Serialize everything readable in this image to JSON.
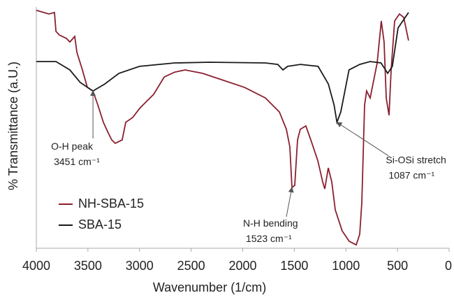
{
  "chart_data": {
    "type": "line",
    "x_label": "Wavenumber (1/cm)",
    "y_label": "% Transmittance (a.U.)",
    "xlim": [
      4000,
      0
    ],
    "xticks": [
      4000,
      3500,
      3000,
      2500,
      2000,
      1500,
      1000,
      500,
      0
    ],
    "ylim": [
      0,
      100
    ],
    "legend": "lower left",
    "series": [
      {
        "name": "NH-SBA-15",
        "color": "#8b1f2f",
        "x": [
          4000,
          3878,
          3824,
          3810,
          3777,
          3709,
          3675,
          3628,
          3607,
          3553,
          3506,
          3452,
          3404,
          3350,
          3303,
          3269,
          3235,
          3168,
          3134,
          3066,
          2998,
          2931,
          2863,
          2761,
          2660,
          2558,
          2389,
          2186,
          1983,
          1780,
          1645,
          1577,
          1543,
          1523,
          1496,
          1469,
          1442,
          1388,
          1340,
          1272,
          1225,
          1205,
          1171,
          1137,
          1103,
          1036,
          968,
          900,
          866,
          846,
          819,
          799,
          765,
          697,
          657,
          630,
          609,
          582,
          562,
          528,
          481,
          440,
          393
        ],
        "values": [
          98.6,
          97.1,
          97.7,
          89.9,
          88.4,
          87.0,
          85.5,
          87.8,
          81.2,
          73.9,
          66.7,
          65.2,
          59.4,
          52.2,
          47.8,
          44.9,
          43.5,
          44.9,
          52.2,
          54.2,
          58.0,
          60.9,
          63.8,
          71.0,
          73.0,
          73.9,
          72.5,
          69.6,
          66.7,
          62.3,
          56.5,
          49.3,
          42.0,
          25.2,
          26.1,
          44.9,
          49.3,
          50.7,
          44.9,
          36.2,
          27.5,
          24.6,
          33.3,
          27.5,
          15.9,
          7.2,
          2.9,
          1.4,
          5.8,
          18.8,
          59.4,
          65.2,
          62.3,
          76.8,
          94.2,
          85.5,
          62.3,
          55.1,
          73.9,
          94.2,
          97.1,
          95.7,
          86.1
        ]
      },
      {
        "name": "SBA-15",
        "color": "#1a1a1a",
        "x": [
          4000,
          3810,
          3675,
          3574,
          3451,
          3337,
          3200,
          3000,
          2660,
          2320,
          1780,
          1660,
          1610,
          1565,
          1440,
          1270,
          1170,
          1115,
          1087,
          1050,
          970,
          866,
          765,
          660,
          595,
          550,
          495,
          393
        ],
        "values": [
          77.4,
          77.4,
          73.9,
          68.7,
          65.2,
          68.1,
          72.5,
          75.4,
          76.8,
          77.1,
          76.8,
          76.2,
          73.9,
          75.4,
          76.2,
          75.4,
          68.1,
          59.4,
          52.2,
          56.5,
          73.9,
          76.2,
          77.4,
          76.8,
          72.5,
          75.4,
          91.3,
          97.7
        ]
      }
    ],
    "annotations": [
      {
        "lines": [
          "O-H peak",
          "3451 cm⁻¹"
        ],
        "x": 3451,
        "y": 65.2
      },
      {
        "lines": [
          "N-H bending",
          "1523 cm⁻¹"
        ],
        "x": 1523,
        "y": 25.2
      },
      {
        "lines": [
          "Si-OSi stretch",
          "1087 cm⁻¹"
        ],
        "x": 1087,
        "y": 52.2
      }
    ]
  }
}
